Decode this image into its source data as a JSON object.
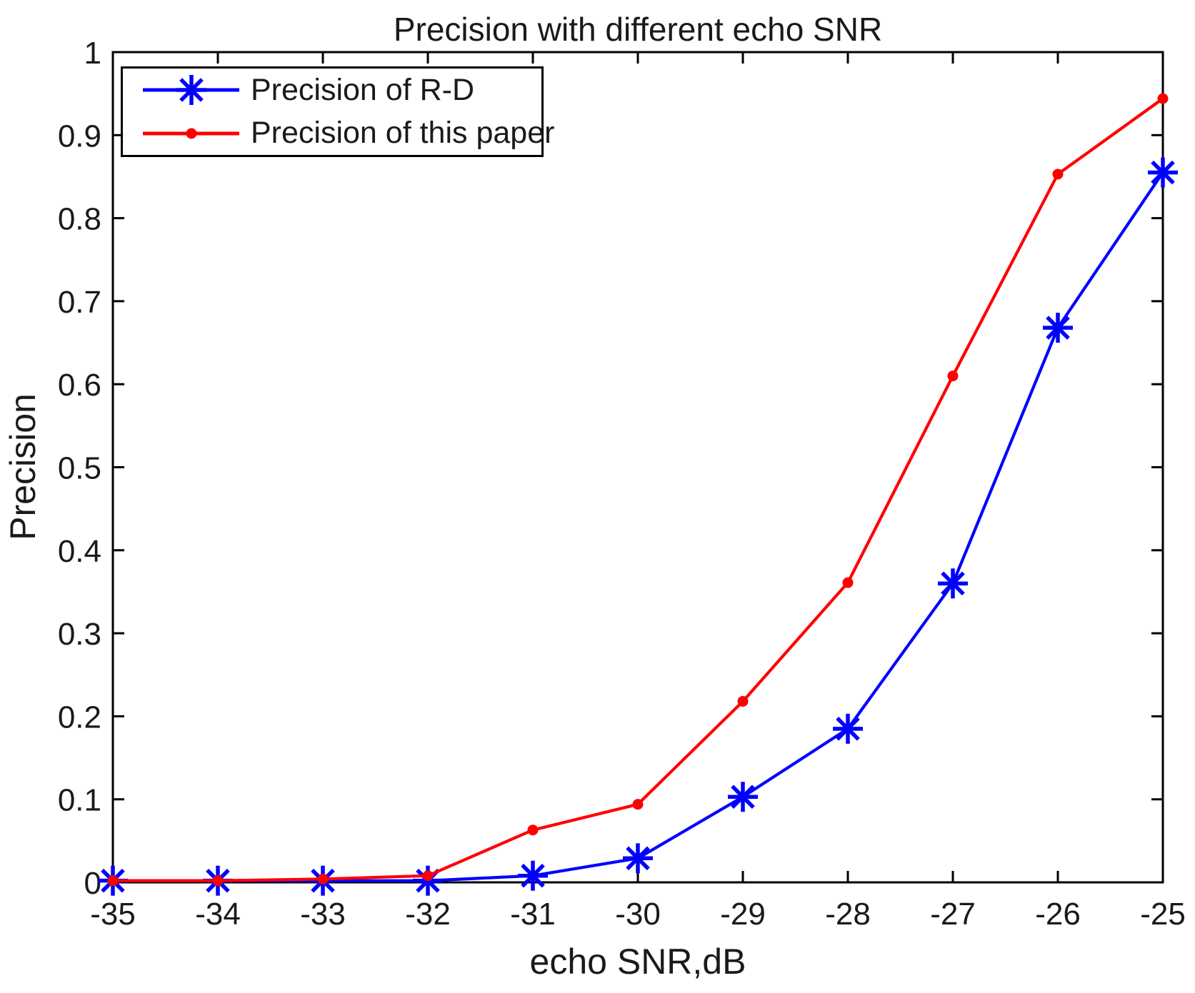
{
  "figure": {
    "background": "#ffffff",
    "axis_color": "#000000",
    "text_color": "#1a1a1a"
  },
  "chart_data": {
    "type": "line",
    "title": "Precision with different echo SNR",
    "xlabel": "echo SNR,dB",
    "ylabel": "Precision",
    "x": [
      -35,
      -34,
      -33,
      -32,
      -31,
      -30,
      -29,
      -28,
      -27,
      -26,
      -25
    ],
    "xlim": [
      -35,
      -25
    ],
    "ylim": [
      0,
      1
    ],
    "xticks": [
      -35,
      -34,
      -33,
      -32,
      -31,
      -30,
      -29,
      -28,
      -27,
      -26,
      -25
    ],
    "xtick_labels": [
      "-35",
      "-34",
      "-33",
      "-32",
      "-31",
      "-30",
      "-29",
      "-28",
      "-27",
      "-26",
      "-25"
    ],
    "yticks": [
      0,
      0.1,
      0.2,
      0.3,
      0.4,
      0.5,
      0.6,
      0.7,
      0.8,
      0.9,
      1
    ],
    "ytick_labels": [
      "0",
      "0.1",
      "0.2",
      "0.3",
      "0.4",
      "0.5",
      "0.6",
      "0.7",
      "0.8",
      "0.9",
      "1"
    ],
    "grid": false,
    "legend": {
      "position": "top-left",
      "border_color": "#000000",
      "background": "#ffffff"
    },
    "series": [
      {
        "name": "Precision of R-D",
        "color": "#0000ff",
        "marker": "asterisk",
        "values": [
          0.002,
          0.002,
          0.002,
          0.002,
          0.008,
          0.029,
          0.103,
          0.185,
          0.36,
          0.668,
          0.855
        ]
      },
      {
        "name": "Precision of this paper",
        "color": "#ff0000",
        "marker": "dot",
        "values": [
          0.002,
          0.002,
          0.004,
          0.008,
          0.063,
          0.094,
          0.218,
          0.361,
          0.61,
          0.853,
          0.944
        ]
      }
    ]
  }
}
